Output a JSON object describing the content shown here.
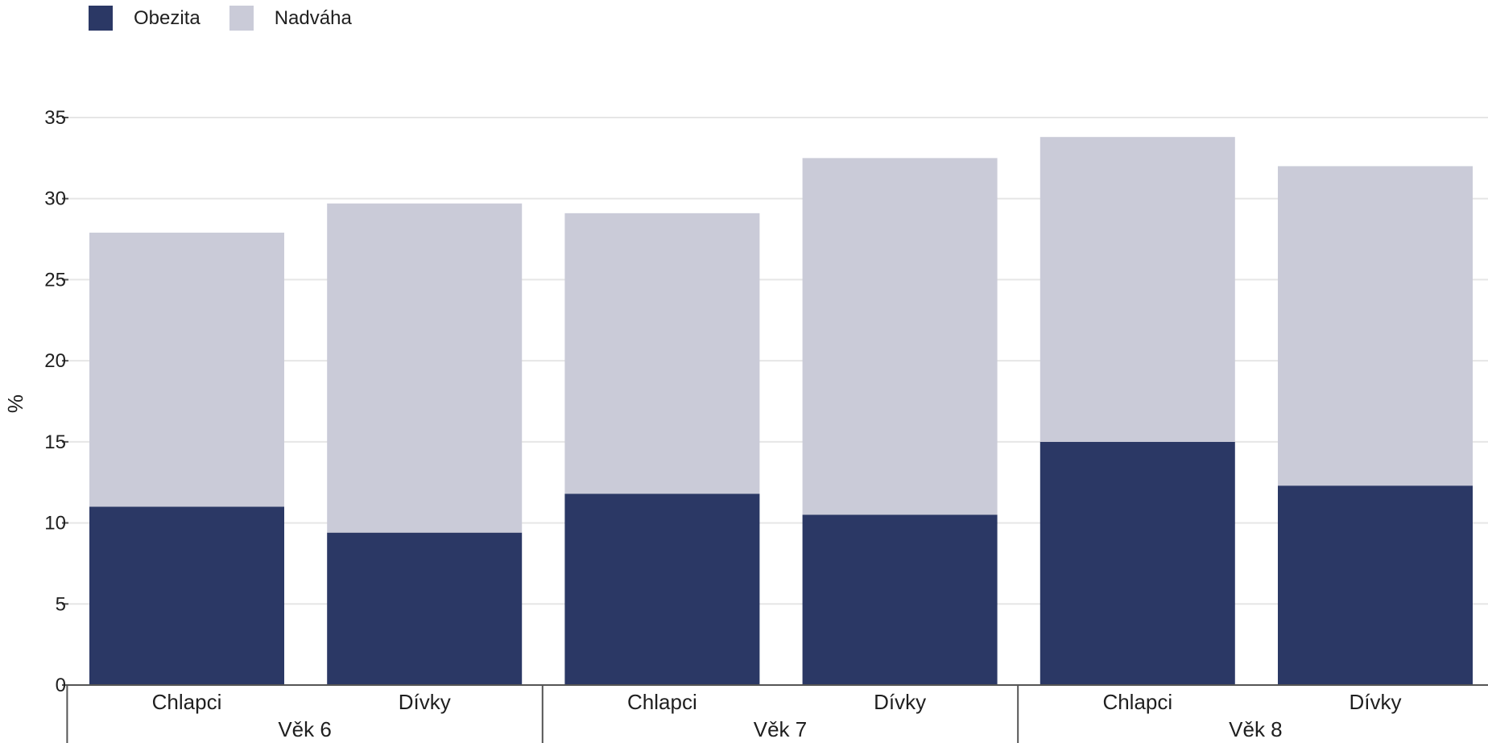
{
  "chart_data": {
    "type": "bar",
    "stacked": true,
    "groups": [
      {
        "label": "Věk 6",
        "categories": [
          "Chlapci",
          "Dívky"
        ]
      },
      {
        "label": "Věk 7",
        "categories": [
          "Chlapci",
          "Dívky"
        ]
      },
      {
        "label": "Věk 8",
        "categories": [
          "Chlapci",
          "Dívky"
        ]
      }
    ],
    "series": [
      {
        "name": "Obezita",
        "color": "#2b3865",
        "values": [
          11.0,
          9.4,
          11.8,
          10.5,
          15.0,
          12.3
        ]
      },
      {
        "name": "Nadváha",
        "color": "#cacbd8",
        "values": [
          16.9,
          20.3,
          17.3,
          22.0,
          18.8,
          19.7
        ]
      }
    ],
    "ylabel": "%",
    "xlabel": "",
    "ylim": [
      0,
      35
    ],
    "yticks": [
      0,
      5,
      10,
      15,
      20,
      25,
      30,
      35
    ],
    "grid": true,
    "legend_position": "top-left"
  }
}
